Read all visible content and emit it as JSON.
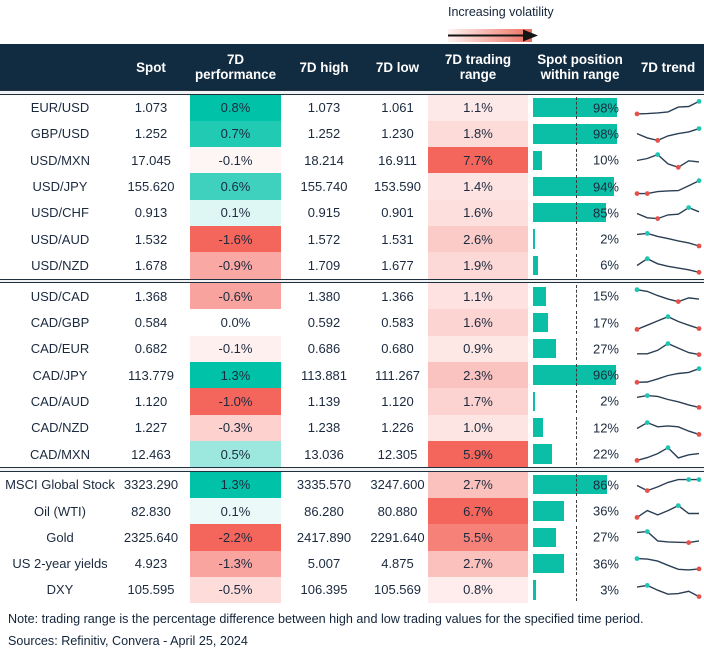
{
  "legend": {
    "label": "Increasing volatility"
  },
  "colors": {
    "teal": "#00C2A8",
    "red": "#F4655C",
    "header_bg": "#112B40",
    "header_text": "#FFFFFF",
    "text": "#1B2A3E",
    "bar": "#0BBFA7",
    "spark_line": "#2B3F54",
    "dot_high": "#20C4B2",
    "dot_low": "#E4514B",
    "gradient_from": "#FDF3F1",
    "gradient_to": "#EE6E5F"
  },
  "chart_data": {
    "type": "table",
    "columns": [
      "",
      "Spot",
      "7D performance",
      "7D high",
      "7D low",
      "7D trading range",
      "Spot position within range",
      "7D trend"
    ],
    "spot_position_axis": {
      "min": 0,
      "max": 100,
      "dashed_reference_pct": 50
    },
    "sections": [
      {
        "rows": [
          {
            "name": "EUR/USD",
            "spot": "1.073",
            "perf": "0.8%",
            "high": "1.073",
            "low": "1.061",
            "range": "1.1%",
            "pos": "98%",
            "trend": {
              "y": [
                0.18,
                0.2,
                0.24,
                0.3,
                0.58,
                0.62,
                0.92
              ],
              "lo": [
                0
              ],
              "hi": [
                6
              ]
            }
          },
          {
            "name": "GBP/USD",
            "spot": "1.252",
            "perf": "0.7%",
            "high": "1.252",
            "low": "1.230",
            "range": "1.8%",
            "pos": "98%",
            "trend": {
              "y": [
                0.55,
                0.3,
                0.15,
                0.42,
                0.55,
                0.65,
                0.85
              ],
              "lo": [
                2
              ],
              "hi": [
                6
              ]
            }
          },
          {
            "name": "USD/MXN",
            "spot": "17.045",
            "perf": "-0.1%",
            "high": "18.214",
            "low": "16.911",
            "range": "7.7%",
            "pos": "10%",
            "trend": {
              "y": [
                0.5,
                0.62,
                0.85,
                0.3,
                0.1,
                0.48,
                0.42
              ],
              "lo": [
                4
              ],
              "hi": [
                2
              ]
            }
          },
          {
            "name": "USD/JPY",
            "spot": "155.620",
            "perf": "0.6%",
            "high": "155.740",
            "low": "153.590",
            "range": "1.4%",
            "pos": "94%",
            "trend": {
              "y": [
                0.14,
                0.14,
                0.26,
                0.3,
                0.32,
                0.6,
                0.9
              ],
              "lo": [
                0,
                1
              ],
              "hi": [
                6
              ]
            }
          },
          {
            "name": "USD/CHF",
            "spot": "0.913",
            "perf": "0.1%",
            "high": "0.915",
            "low": "0.901",
            "range": "1.6%",
            "pos": "85%",
            "trend": {
              "y": [
                0.5,
                0.25,
                0.2,
                0.42,
                0.46,
                0.85,
                0.6
              ],
              "lo": [
                2
              ],
              "hi": [
                5
              ]
            }
          },
          {
            "name": "USD/AUD",
            "spot": "1.532",
            "perf": "-1.6%",
            "high": "1.572",
            "low": "1.531",
            "range": "2.6%",
            "pos": "2%",
            "trend": {
              "y": [
                0.8,
                0.86,
                0.68,
                0.55,
                0.42,
                0.3,
                0.12
              ],
              "lo": [
                6
              ],
              "hi": [
                1
              ]
            }
          },
          {
            "name": "USD/NZD",
            "spot": "1.678",
            "perf": "-0.9%",
            "high": "1.709",
            "low": "1.677",
            "range": "1.9%",
            "pos": "6%",
            "trend": {
              "y": [
                0.5,
                0.9,
                0.6,
                0.45,
                0.35,
                0.25,
                0.1
              ],
              "lo": [
                6
              ],
              "hi": [
                1
              ]
            }
          }
        ]
      },
      {
        "rows": [
          {
            "name": "USD/CAD",
            "spot": "1.368",
            "perf": "-0.6%",
            "high": "1.380",
            "low": "1.366",
            "range": "1.1%",
            "pos": "15%",
            "trend": {
              "y": [
                0.9,
                0.8,
                0.55,
                0.35,
                0.2,
                0.42,
                0.35
              ],
              "lo": [
                4
              ],
              "hi": [
                0
              ]
            }
          },
          {
            "name": "CAD/GBP",
            "spot": "0.584",
            "perf": "0.0%",
            "high": "0.592",
            "low": "0.583",
            "range": "1.6%",
            "pos": "17%",
            "trend": {
              "y": [
                0.15,
                0.4,
                0.65,
                0.9,
                0.62,
                0.4,
                0.2
              ],
              "lo": [
                0,
                6
              ],
              "hi": [
                3
              ]
            }
          },
          {
            "name": "CAD/EUR",
            "spot": "0.682",
            "perf": "-0.1%",
            "high": "0.686",
            "low": "0.680",
            "range": "0.9%",
            "pos": "27%",
            "trend": {
              "y": [
                0.25,
                0.25,
                0.45,
                0.85,
                0.58,
                0.32,
                0.2
              ],
              "lo": [
                6
              ],
              "hi": [
                3
              ]
            }
          },
          {
            "name": "CAD/JPY",
            "spot": "113.779",
            "perf": "1.3%",
            "high": "113.881",
            "low": "111.267",
            "range": "2.3%",
            "pos": "96%",
            "trend": {
              "y": [
                0.1,
                0.12,
                0.3,
                0.5,
                0.62,
                0.68,
                0.9
              ],
              "lo": [
                0
              ],
              "hi": [
                6
              ]
            }
          },
          {
            "name": "CAD/AUD",
            "spot": "1.120",
            "perf": "-1.0%",
            "high": "1.139",
            "low": "1.120",
            "range": "1.7%",
            "pos": "2%",
            "trend": {
              "y": [
                0.75,
                0.85,
                0.8,
                0.62,
                0.48,
                0.3,
                0.15
              ],
              "lo": [
                6
              ],
              "hi": [
                1
              ]
            }
          },
          {
            "name": "CAD/NZD",
            "spot": "1.227",
            "perf": "-0.3%",
            "high": "1.238",
            "low": "1.226",
            "range": "1.0%",
            "pos": "12%",
            "trend": {
              "y": [
                0.5,
                0.85,
                0.6,
                0.65,
                0.6,
                0.35,
                0.15
              ],
              "lo": [
                6
              ],
              "hi": [
                1
              ]
            }
          },
          {
            "name": "CAD/MXN",
            "spot": "12.463",
            "perf": "0.5%",
            "high": "13.036",
            "low": "12.305",
            "range": "5.9%",
            "pos": "22%",
            "trend": {
              "y": [
                0.15,
                0.32,
                0.55,
                0.9,
                0.3,
                0.48,
                0.55
              ],
              "lo": [
                0
              ],
              "hi": [
                3
              ]
            }
          }
        ]
      },
      {
        "rows": [
          {
            "name": "MSCI Global Stock",
            "spot": "3323.290",
            "perf": "1.3%",
            "high": "3335.570",
            "low": "3247.600",
            "range": "2.7%",
            "pos": "86%",
            "trend": {
              "y": [
                0.5,
                0.2,
                0.42,
                0.68,
                0.85,
                0.85,
                0.85
              ],
              "lo": [
                1
              ],
              "hi": [
                5,
                6
              ]
            }
          },
          {
            "name": "Oil (WTI)",
            "spot": "82.830",
            "perf": "0.1%",
            "high": "86.280",
            "low": "80.880",
            "range": "6.7%",
            "pos": "36%",
            "trend": {
              "y": [
                0.15,
                0.55,
                0.3,
                0.55,
                0.85,
                0.38,
                0.38
              ],
              "lo": [
                0
              ],
              "hi": [
                4
              ]
            }
          },
          {
            "name": "Gold",
            "spot": "2325.640",
            "perf": "-2.2%",
            "high": "2417.890",
            "low": "2291.640",
            "range": "5.5%",
            "pos": "27%",
            "trend": {
              "y": [
                0.8,
                0.85,
                0.3,
                0.24,
                0.22,
                0.2,
                0.3
              ],
              "lo": [
                5
              ],
              "hi": [
                1
              ]
            }
          },
          {
            "name": "US 2-year yields",
            "spot": "4.923",
            "perf": "-1.3%",
            "high": "5.007",
            "low": "4.875",
            "range": "2.7%",
            "pos": "36%",
            "trend": {
              "y": [
                0.85,
                0.82,
                0.7,
                0.45,
                0.22,
                0.18,
                0.24
              ],
              "lo": [
                6
              ],
              "hi": [
                0
              ]
            }
          },
          {
            "name": "DXY",
            "spot": "105.595",
            "perf": "-0.5%",
            "high": "106.395",
            "low": "105.569",
            "range": "0.8%",
            "pos": "3%",
            "trend": {
              "y": [
                0.7,
                0.8,
                0.52,
                0.28,
                0.32,
                0.45,
                0.14
              ],
              "lo": [
                6
              ],
              "hi": [
                1
              ]
            }
          }
        ]
      }
    ]
  },
  "footer": {
    "note": "Note: trading range is the percentage difference between high and low trading values for the specified time period.",
    "sources": "Sources: Refinitiv, Convera - April 25, 2024"
  }
}
